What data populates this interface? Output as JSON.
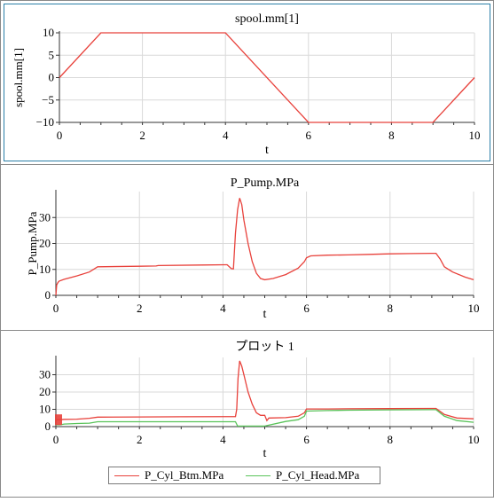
{
  "colors": {
    "red": "#e8413b",
    "green": "#5ac35a",
    "grid": "#d9d9d9",
    "axis": "#333333"
  },
  "chart_data": [
    {
      "type": "line",
      "title": "spool.mm[1]",
      "xlabel": "t",
      "ylabel": "spool.mm[1]",
      "xlim": [
        0,
        10
      ],
      "ylim": [
        -10,
        10
      ],
      "xticks": [
        "0",
        "2",
        "4",
        "6",
        "8",
        "10"
      ],
      "yticks": [
        "10",
        "5",
        "0",
        "−5",
        "−10"
      ],
      "grid": true,
      "series": [
        {
          "color": "#e8413b",
          "x": [
            0,
            1,
            4,
            6,
            9,
            10
          ],
          "y": [
            0,
            10,
            10,
            -10,
            -10,
            0
          ]
        }
      ]
    },
    {
      "type": "line",
      "title": "P_Pump.MPa",
      "xlabel": "t",
      "ylabel": "P_Pump.MPa",
      "xlim": [
        0,
        10
      ],
      "ylim": [
        0,
        40
      ],
      "xticks": [
        "0",
        "2",
        "4",
        "6",
        "8",
        "10"
      ],
      "yticks": [
        "30",
        "20",
        "10",
        "0"
      ],
      "grid": true,
      "series": [
        {
          "color": "#e8413b",
          "x": [
            0,
            0.02,
            0.05,
            0.08,
            0.2,
            0.5,
            0.8,
            1.0,
            2.0,
            2.4,
            2.45,
            3.5,
            4.1,
            4.2,
            4.25,
            4.3,
            4.35,
            4.4,
            4.45,
            4.5,
            4.6,
            4.7,
            4.8,
            4.9,
            5.0,
            5.2,
            5.5,
            5.8,
            5.95,
            6.0,
            6.1,
            6.5,
            7.0,
            7.5,
            8.0,
            8.5,
            9.0,
            9.1,
            9.2,
            9.3,
            9.5,
            9.8,
            10.0
          ],
          "y": [
            0,
            4,
            5,
            5.5,
            6.2,
            7.5,
            9,
            11,
            11.2,
            11.3,
            11.5,
            11.7,
            11.8,
            10.3,
            10.2,
            24,
            33,
            37.5,
            35,
            29,
            20,
            13,
            8.5,
            6.5,
            6,
            6.5,
            8,
            10.5,
            13,
            14.5,
            15.2,
            15.5,
            15.6,
            15.8,
            16,
            16.1,
            16.2,
            16.2,
            14,
            11,
            9,
            7,
            6
          ]
        }
      ]
    },
    {
      "type": "line",
      "title": "プロット 1",
      "xlabel": "t",
      "ylabel": "",
      "xlim": [
        0,
        10
      ],
      "ylim": [
        0,
        40
      ],
      "xticks": [
        "0",
        "2",
        "4",
        "6",
        "8",
        "10"
      ],
      "yticks": [
        "30",
        "20",
        "10",
        "0"
      ],
      "grid": true,
      "legend": "bottom",
      "series": [
        {
          "name": "P_Cyl_Btm.MPa",
          "color": "#e8413b",
          "x": [
            0,
            0.1,
            0.2,
            0.5,
            0.8,
            1.0,
            2.0,
            3.0,
            4.3,
            4.33,
            4.36,
            4.4,
            4.45,
            4.5,
            4.6,
            4.7,
            4.8,
            4.9,
            5.0,
            5.05,
            5.1,
            5.5,
            5.8,
            5.95,
            6.0,
            6.5,
            7.0,
            8.0,
            9.0,
            9.1,
            9.3,
            9.6,
            10.0
          ],
          "y": [
            4,
            4,
            4.2,
            4.3,
            4.8,
            5.5,
            5.6,
            5.7,
            5.8,
            10,
            28,
            38,
            35,
            30,
            20,
            13,
            8,
            6.5,
            6.5,
            3.5,
            5,
            5.2,
            6,
            8,
            10.2,
            10.2,
            10.3,
            10.4,
            10.5,
            10.5,
            7,
            5,
            4.5
          ]
        },
        {
          "name": "P_Cyl_Head.MPa",
          "color": "#5ac35a",
          "x": [
            0,
            0.1,
            0.2,
            0.5,
            0.8,
            1.0,
            2.0,
            3.0,
            4.3,
            4.35,
            4.4,
            5.0,
            5.5,
            5.8,
            5.95,
            6.0,
            6.5,
            7.0,
            8.0,
            9.0,
            9.1,
            9.3,
            9.6,
            10.0
          ],
          "y": [
            1,
            1,
            1.5,
            1.8,
            2.0,
            2.8,
            2.8,
            2.8,
            2.8,
            0.3,
            0.3,
            0.3,
            3,
            4,
            6,
            9,
            9.3,
            9.5,
            9.7,
            9.8,
            9.8,
            6,
            3.5,
            2.5
          ]
        }
      ]
    }
  ]
}
